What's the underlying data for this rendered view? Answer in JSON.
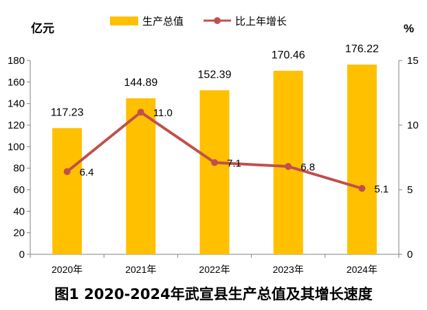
{
  "chart_data": {
    "type": "bar",
    "categories": [
      "2020年",
      "2021年",
      "2022年",
      "2023年",
      "2024年"
    ],
    "series": [
      {
        "name": "生产总值",
        "type": "bar",
        "axis": "left",
        "values": [
          117.23,
          144.89,
          152.39,
          170.46,
          176.22
        ],
        "color": "#FFC000"
      },
      {
        "name": "比上年增长",
        "type": "line",
        "axis": "right",
        "values": [
          6.4,
          11.0,
          7.1,
          6.8,
          5.1
        ],
        "color": "#C0504D"
      }
    ],
    "bar_labels": [
      "117.23",
      "144.89",
      "152.39",
      "170.46",
      "176.22"
    ],
    "line_labels": [
      "6.4",
      "11.0",
      "7.1",
      "6.8",
      "5.1"
    ],
    "y_left_label": "亿元",
    "y_right_label": "%",
    "y_left_ticks": [
      "0",
      "20",
      "40",
      "60",
      "80",
      "100",
      "120",
      "140",
      "160",
      "180"
    ],
    "y_right_ticks": [
      "0",
      "5",
      "10",
      "15"
    ],
    "ylim_left": [
      0,
      180
    ],
    "ylim_right": [
      0,
      15
    ],
    "legend_position": "top-center",
    "grid": false,
    "title": "图1  2020-2024年武宣县生产总值及其增长速度"
  }
}
